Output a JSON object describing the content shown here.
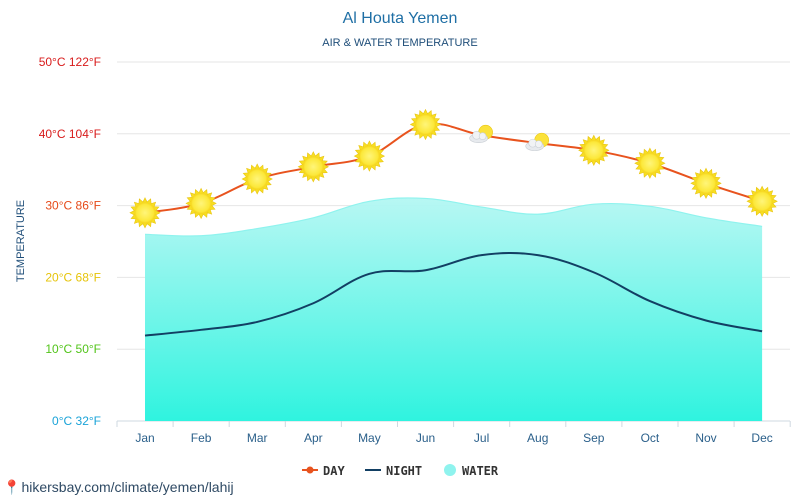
{
  "chart_data": {
    "type": "line",
    "title": "Al Houta Yemen",
    "subtitle": "AIR & WATER TEMPERATURE",
    "ylabel": "TEMPERATURE",
    "ylim": [
      0,
      50
    ],
    "categories": [
      "Jan",
      "Feb",
      "Mar",
      "Apr",
      "May",
      "Jun",
      "Jul",
      "Aug",
      "Sep",
      "Oct",
      "Nov",
      "Dec"
    ],
    "y_ticks": [
      {
        "value": 0,
        "label": "0°C 32°F",
        "color": "#1aa3d8"
      },
      {
        "value": 10,
        "label": "10°C 50°F",
        "color": "#52c41a"
      },
      {
        "value": 20,
        "label": "20°C 68°F",
        "color": "#e6c40a"
      },
      {
        "value": 30,
        "label": "30°C 86°F",
        "color": "#e64a19"
      },
      {
        "value": 40,
        "label": "40°C 104°F",
        "color": "#d81b1b"
      },
      {
        "value": 50,
        "label": "50°C 122°F",
        "color": "#d81b1b"
      }
    ],
    "series": [
      {
        "name": "DAY",
        "color": "#e8531e",
        "values": [
          29,
          30.3,
          33.7,
          35.4,
          36.9,
          41.3,
          39.8,
          38.7,
          37.7,
          35.9,
          33.1,
          30.6
        ]
      },
      {
        "name": "NIGHT",
        "color": "#123f63",
        "values": [
          11.9,
          12.7,
          13.8,
          16.4,
          20.5,
          21.0,
          23.1,
          23.1,
          20.7,
          16.7,
          14.0,
          12.5
        ]
      },
      {
        "name": "WATER",
        "color": "#8ff3ee",
        "values": [
          26.0,
          25.8,
          26.8,
          28.3,
          30.6,
          31.0,
          29.8,
          28.8,
          30.2,
          29.9,
          28.3,
          27.1
        ]
      }
    ],
    "weather_icons": [
      "sun-icon",
      "sun-icon",
      "sun-icon",
      "sun-icon",
      "sun-icon",
      "sun-icon",
      "cloud-icon",
      "cloud-icon",
      "sun-icon",
      "sun-icon",
      "sun-icon",
      "sun-icon"
    ],
    "grid": true,
    "legend_position": "bottom-center"
  },
  "footer": {
    "url": "hikersbay.com/climate/yemen/lahij",
    "icon": "map-pin-icon"
  }
}
